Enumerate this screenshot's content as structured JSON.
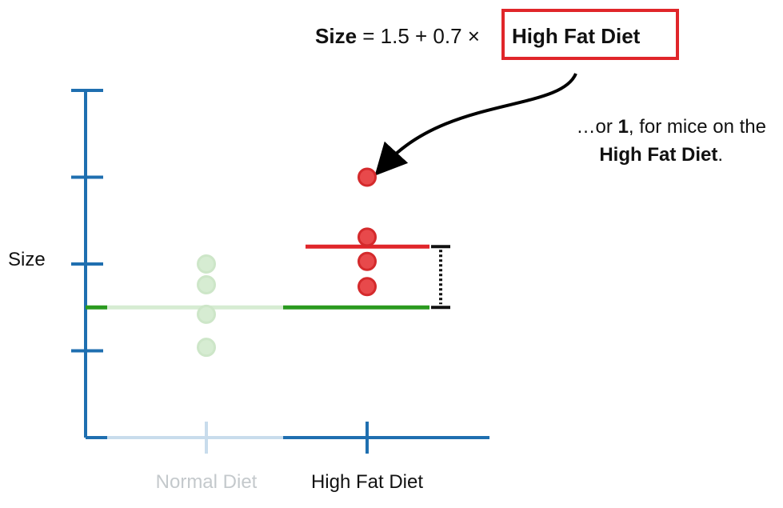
{
  "equation": {
    "lhs": "Size",
    "rhs": " = 1.5 + 0.7 × ",
    "highlight": "High Fat Diet",
    "highlight_color": "#e0262a"
  },
  "annotation": {
    "line1_pre": "…or ",
    "line1_bold": "1",
    "line1_post": ", for mice on the",
    "line2_bold": "High Fat Diet",
    "line2_post": "."
  },
  "colors": {
    "axis": "#1f6fb0",
    "axis_faded": "#c8dcec",
    "normal_points": "#d6ecd2",
    "normal_line": "#d6ecd2",
    "hfd_points": "#e8494b",
    "baseline": "#2a9a1f",
    "hfd_line": "#e0262a",
    "bracket": "#111111"
  },
  "chart_data": {
    "type": "scatter",
    "ylabel": "Size",
    "xlabel": "",
    "categories": [
      "Normal Diet",
      "High Fat Diet"
    ],
    "ylim": [
      0,
      4
    ],
    "yticks": [
      1,
      2,
      3,
      4
    ],
    "series": [
      {
        "category": "Normal Diet",
        "values": [
          1.04,
          1.42,
          1.76,
          2.0
        ],
        "faded": true
      },
      {
        "category": "High Fat Diet",
        "values": [
          1.74,
          2.03,
          2.31,
          3.0
        ],
        "faded": false
      }
    ],
    "baseline_mean": 1.5,
    "hfd_mean": 2.2
  }
}
